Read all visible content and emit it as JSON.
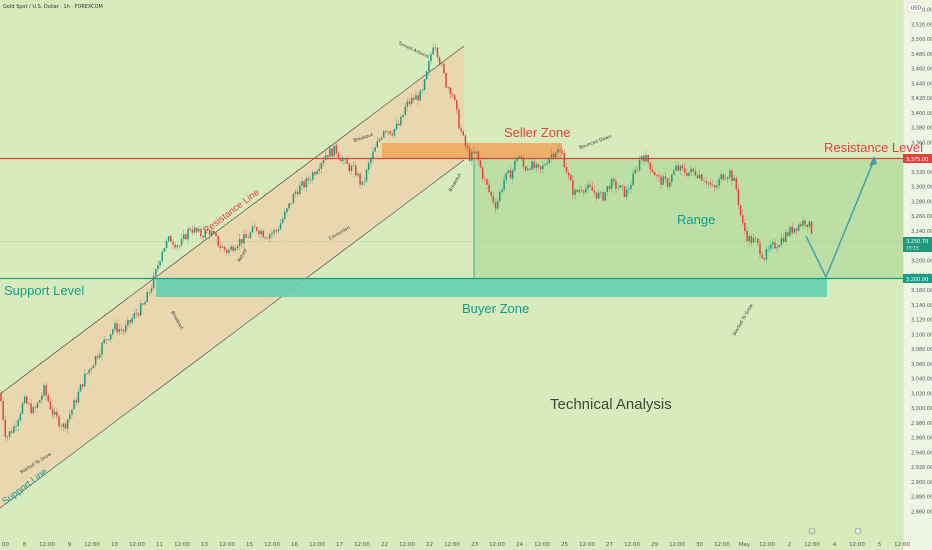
{
  "header": {
    "symbol_title": "Gold Spot / U.S. Dollar · 1h · FOREXCOM",
    "currency": "USD"
  },
  "chart_data": {
    "type": "candlestick",
    "symbol": "Gold Spot / U.S. Dollar",
    "timeframe": "1h",
    "ylim": [
      2856,
      3566
    ],
    "yticks": [
      2860,
      2880,
      2900,
      2920,
      2940,
      2960,
      2980,
      3000,
      3020,
      3040,
      3060,
      3080,
      3100,
      3120,
      3140,
      3160,
      3180,
      3200,
      3220,
      3240,
      3260,
      3280,
      3300,
      3320,
      3340,
      3360,
      3380,
      3400,
      3420,
      3440,
      3460,
      3480,
      3500,
      3520,
      3540
    ],
    "x_tick_labels": [
      "00",
      "8",
      "12:00",
      "9",
      "12:00",
      "10",
      "12:00",
      "11",
      "12:00",
      "13",
      "12:00",
      "15",
      "12:00",
      "16",
      "12:00",
      "17",
      "12:00",
      "22",
      "12:00",
      "22",
      "12:00",
      "23",
      "12:00",
      "24",
      "12:00",
      "25",
      "12:00",
      "27",
      "12:00",
      "29",
      "12:00",
      "30",
      "12:00",
      "May",
      "12:00",
      "2",
      "12:00",
      "4",
      "12:00",
      "5",
      "12:00"
    ],
    "price_labels": {
      "resistance": "3,375.00",
      "current": "3,250.70",
      "current_sub": "15:15",
      "support": "3,200.00"
    },
    "levels": {
      "resistance": 3375,
      "support": 3200,
      "seller_zone": [
        3375,
        3395
      ],
      "buyer_zone": [
        3180,
        3200
      ]
    },
    "ohlc_path": [
      [
        0,
        3020
      ],
      [
        6,
        2960
      ],
      [
        14,
        2975
      ],
      [
        24,
        3010
      ],
      [
        34,
        2995
      ],
      [
        44,
        3025
      ],
      [
        54,
        2990
      ],
      [
        64,
        2975
      ],
      [
        74,
        3005
      ],
      [
        84,
        3040
      ],
      [
        94,
        3065
      ],
      [
        104,
        3090
      ],
      [
        114,
        3110
      ],
      [
        124,
        3105
      ],
      [
        134,
        3125
      ],
      [
        144,
        3140
      ],
      [
        154,
        3175
      ],
      [
        162,
        3215
      ],
      [
        170,
        3230
      ],
      [
        180,
        3220
      ],
      [
        190,
        3245
      ],
      [
        200,
        3235
      ],
      [
        210,
        3240
      ],
      [
        220,
        3220
      ],
      [
        228,
        3212
      ],
      [
        236,
        3225
      ],
      [
        246,
        3230
      ],
      [
        256,
        3245
      ],
      [
        266,
        3235
      ],
      [
        276,
        3240
      ],
      [
        286,
        3265
      ],
      [
        296,
        3295
      ],
      [
        306,
        3305
      ],
      [
        316,
        3325
      ],
      [
        326,
        3345
      ],
      [
        336,
        3350
      ],
      [
        346,
        3330
      ],
      [
        356,
        3320
      ],
      [
        362,
        3300
      ],
      [
        370,
        3335
      ],
      [
        378,
        3360
      ],
      [
        384,
        3380
      ],
      [
        392,
        3375
      ],
      [
        400,
        3385
      ],
      [
        406,
        3410
      ],
      [
        414,
        3420
      ],
      [
        422,
        3425
      ],
      [
        428,
        3460
      ],
      [
        434,
        3500
      ],
      [
        440,
        3470
      ],
      [
        446,
        3440
      ],
      [
        452,
        3430
      ],
      [
        458,
        3390
      ],
      [
        464,
        3360
      ],
      [
        470,
        3340
      ],
      [
        476,
        3345
      ],
      [
        484,
        3310
      ],
      [
        490,
        3290
      ],
      [
        496,
        3275
      ],
      [
        504,
        3310
      ],
      [
        512,
        3320
      ],
      [
        518,
        3345
      ],
      [
        524,
        3325
      ],
      [
        530,
        3330
      ],
      [
        540,
        3320
      ],
      [
        548,
        3340
      ],
      [
        556,
        3350
      ],
      [
        562,
        3345
      ],
      [
        568,
        3315
      ],
      [
        574,
        3290
      ],
      [
        582,
        3300
      ],
      [
        592,
        3295
      ],
      [
        602,
        3285
      ],
      [
        610,
        3305
      ],
      [
        618,
        3300
      ],
      [
        626,
        3290
      ],
      [
        634,
        3315
      ],
      [
        642,
        3345
      ],
      [
        650,
        3330
      ],
      [
        658,
        3310
      ],
      [
        668,
        3305
      ],
      [
        676,
        3325
      ],
      [
        686,
        3320
      ],
      [
        696,
        3320
      ],
      [
        706,
        3310
      ],
      [
        714,
        3295
      ],
      [
        722,
        3315
      ],
      [
        730,
        3320
      ],
      [
        736,
        3300
      ],
      [
        742,
        3250
      ],
      [
        748,
        3230
      ],
      [
        756,
        3225
      ],
      [
        764,
        3205
      ],
      [
        770,
        3215
      ],
      [
        778,
        3225
      ],
      [
        786,
        3235
      ],
      [
        794,
        3245
      ],
      [
        800,
        3250
      ],
      [
        806,
        3255
      ],
      [
        812,
        3240
      ]
    ],
    "annotations": {
      "seller_zone": "Seller Zone",
      "buyer_zone": "Buyer Zone",
      "resistance_level": "Resistance Level",
      "support_level": "Support Level",
      "resistance_line": "Resistance Line",
      "support_line": "Support Line",
      "range": "Range",
      "technical_analysis": "Technical Analysis",
      "small_breakout_1": "Breakout",
      "small_breakout_2": "Breakout",
      "small_breakout_3": "Breakout",
      "small_turned_around": "Turned Around",
      "small_bounced_down": "Bounced Down",
      "small_correction": "Correction",
      "small_started_to_grow": "Started To Grow",
      "small_started_to_grow_2": "Started To Grow",
      "small_retest": "Retest"
    }
  },
  "colors": {
    "background": "#d7ebbd",
    "resistance": "#e0443e",
    "support": "#139e8a",
    "buyer_zone": "#66cfae",
    "seller_zone": "#f0a860",
    "channel_fill": "#efcfa9",
    "range_fill": "#b8dca0",
    "bull_candle": "#1f9a7c",
    "bear_candle": "#e0443e",
    "projection": "#3c9fa8"
  }
}
